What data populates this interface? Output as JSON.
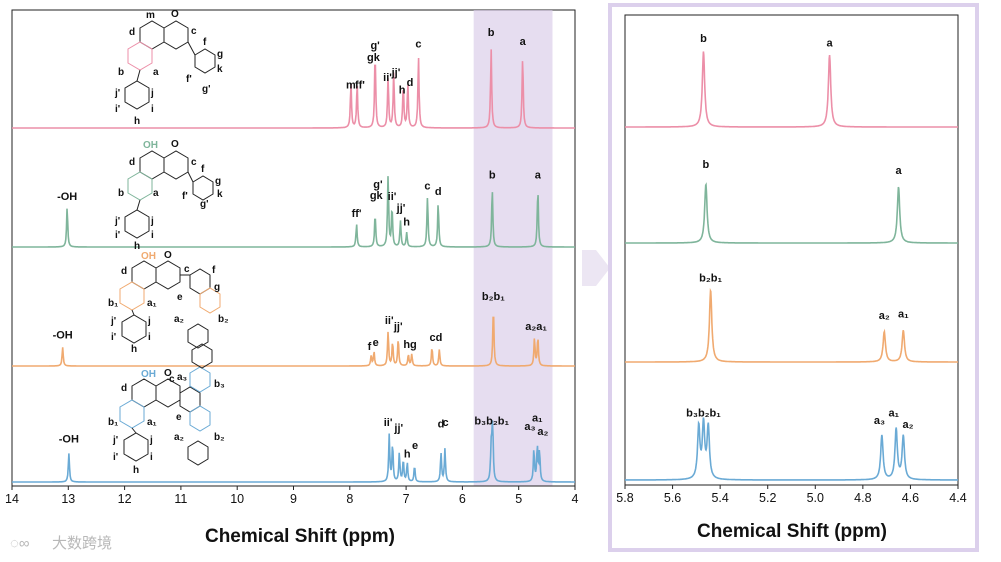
{
  "main_chart": {
    "type": "line",
    "xlabel": "Chemical Shift (ppm)",
    "xlim": [
      14,
      4
    ],
    "x_ticks": [
      "14",
      "13",
      "12",
      "11",
      "10",
      "9",
      "8",
      "7",
      "6",
      "5",
      "4"
    ],
    "highlight_range": [
      5.8,
      4.4
    ],
    "series": [
      {
        "name": "compound-1",
        "color": "#ec8fa8",
        "peaks": [
          {
            "ppm": 7.98,
            "height": 0.62
          },
          {
            "ppm": 7.87,
            "height": 0.62
          },
          {
            "ppm": 7.55,
            "height": 1.05
          },
          {
            "ppm": 7.32,
            "height": 0.7
          },
          {
            "ppm": 7.22,
            "height": 0.78
          },
          {
            "ppm": 7.05,
            "height": 0.6
          },
          {
            "ppm": 6.97,
            "height": 0.62
          },
          {
            "ppm": 6.78,
            "height": 1.0
          },
          {
            "ppm": 5.49,
            "height": 1.1
          },
          {
            "ppm": 4.93,
            "height": 1.0
          }
        ],
        "labels": [
          {
            "text": "m",
            "ppm": 7.98,
            "level": 0.55
          },
          {
            "text": "ff'",
            "ppm": 7.82,
            "level": 0.55
          },
          {
            "text": "g'",
            "ppm": 7.55,
            "level": 1.1
          },
          {
            "text": "gk",
            "ppm": 7.58,
            "level": 0.93
          },
          {
            "text": "jj'",
            "ppm": 7.18,
            "level": 0.72
          },
          {
            "text": "ii'",
            "ppm": 7.33,
            "level": 0.65
          },
          {
            "text": "d",
            "ppm": 6.93,
            "level": 0.58
          },
          {
            "text": "h",
            "ppm": 7.07,
            "level": 0.48
          },
          {
            "text": "c",
            "ppm": 6.78,
            "level": 1.12
          },
          {
            "text": "b",
            "ppm": 5.49,
            "level": 1.28
          },
          {
            "text": "a",
            "ppm": 4.93,
            "level": 1.15
          }
        ]
      },
      {
        "name": "compound-2",
        "color": "#7fb59b",
        "peaks": [
          {
            "ppm": 13.02,
            "height": 0.55
          },
          {
            "ppm": 7.88,
            "height": 0.32
          },
          {
            "ppm": 7.55,
            "height": 0.46
          },
          {
            "ppm": 7.32,
            "height": 1.0
          },
          {
            "ppm": 7.25,
            "height": 0.55
          },
          {
            "ppm": 7.1,
            "height": 0.36
          },
          {
            "ppm": 6.99,
            "height": 0.2
          },
          {
            "ppm": 6.62,
            "height": 0.7
          },
          {
            "ppm": 6.43,
            "height": 0.62
          },
          {
            "ppm": 5.47,
            "height": 0.82
          },
          {
            "ppm": 4.66,
            "height": 0.82
          }
        ],
        "labels": [
          {
            "text": "-OH",
            "ppm": 13.02,
            "level": 0.65
          },
          {
            "text": "ff'",
            "ppm": 7.88,
            "level": 0.42
          },
          {
            "text": "g'",
            "ppm": 7.5,
            "level": 0.82
          },
          {
            "text": "gk",
            "ppm": 7.53,
            "level": 0.67
          },
          {
            "text": "ii'",
            "ppm": 7.25,
            "level": 0.65
          },
          {
            "text": "jj'",
            "ppm": 7.09,
            "level": 0.49
          },
          {
            "text": "h",
            "ppm": 6.99,
            "level": 0.3
          },
          {
            "text": "c",
            "ppm": 6.62,
            "level": 0.8
          },
          {
            "text": "d",
            "ppm": 6.43,
            "level": 0.72
          },
          {
            "text": "b",
            "ppm": 5.47,
            "level": 0.95
          },
          {
            "text": "a",
            "ppm": 4.66,
            "level": 0.95
          }
        ]
      },
      {
        "name": "compound-3",
        "color": "#f0aa70",
        "peaks": [
          {
            "ppm": 13.1,
            "height": 0.26
          },
          {
            "ppm": 7.62,
            "height": 0.14
          },
          {
            "ppm": 7.57,
            "height": 0.2
          },
          {
            "ppm": 7.32,
            "height": 0.48
          },
          {
            "ppm": 7.24,
            "height": 0.33
          },
          {
            "ppm": 7.14,
            "height": 0.38
          },
          {
            "ppm": 6.96,
            "height": 0.16
          },
          {
            "ppm": 6.9,
            "height": 0.16
          },
          {
            "ppm": 6.54,
            "height": 0.26
          },
          {
            "ppm": 6.41,
            "height": 0.23
          },
          {
            "ppm": 5.45,
            "height": 0.82
          },
          {
            "ppm": 4.72,
            "height": 0.38
          },
          {
            "ppm": 4.66,
            "height": 0.4
          }
        ],
        "labels": [
          {
            "text": "-OH",
            "ppm": 13.1,
            "level": 0.38
          },
          {
            "text": "f",
            "ppm": 7.65,
            "level": 0.22
          },
          {
            "text": "e",
            "ppm": 7.54,
            "level": 0.28
          },
          {
            "text": "ii'",
            "ppm": 7.3,
            "level": 0.58
          },
          {
            "text": "jj'",
            "ppm": 7.14,
            "level": 0.5
          },
          {
            "text": "hg",
            "ppm": 6.93,
            "level": 0.25
          },
          {
            "text": "cd",
            "ppm": 6.47,
            "level": 0.35
          },
          {
            "text": "b₂b₁",
            "ppm": 5.45,
            "level": 0.92
          },
          {
            "text": "a₂a₁",
            "ppm": 4.69,
            "level": 0.5
          }
        ]
      },
      {
        "name": "compound-4",
        "color": "#6aaad5",
        "peaks": [
          {
            "ppm": 12.99,
            "height": 0.4
          },
          {
            "ppm": 7.3,
            "height": 0.65
          },
          {
            "ppm": 7.24,
            "height": 0.52
          },
          {
            "ppm": 7.12,
            "height": 0.4
          },
          {
            "ppm": 7.05,
            "height": 0.3
          },
          {
            "ppm": 6.98,
            "height": 0.26
          },
          {
            "ppm": 6.85,
            "height": 0.22
          },
          {
            "ppm": 6.38,
            "height": 0.4
          },
          {
            "ppm": 6.31,
            "height": 0.46
          },
          {
            "ppm": 5.49,
            "height": 0.44
          },
          {
            "ppm": 5.47,
            "height": 0.46
          },
          {
            "ppm": 5.46,
            "height": 0.44
          },
          {
            "ppm": 4.73,
            "height": 0.45
          },
          {
            "ppm": 4.67,
            "height": 0.48
          },
          {
            "ppm": 4.63,
            "height": 0.42
          }
        ],
        "labels": [
          {
            "text": "-OH",
            "ppm": 12.99,
            "level": 0.55
          },
          {
            "text": "ii'",
            "ppm": 7.32,
            "level": 0.78
          },
          {
            "text": "jj'",
            "ppm": 7.13,
            "level": 0.7
          },
          {
            "text": "h",
            "ppm": 6.98,
            "level": 0.34
          },
          {
            "text": "e",
            "ppm": 6.84,
            "level": 0.46
          },
          {
            "text": "d",
            "ppm": 6.38,
            "level": 0.76
          },
          {
            "text": "c",
            "ppm": 6.3,
            "level": 0.78
          },
          {
            "text": "b₃b₂b₁",
            "ppm": 5.48,
            "level": 0.8
          },
          {
            "text": "a₃",
            "ppm": 4.8,
            "level": 0.72
          },
          {
            "text": "a₁",
            "ppm": 4.67,
            "level": 0.84
          },
          {
            "text": "a₂",
            "ppm": 4.57,
            "level": 0.65
          }
        ]
      }
    ]
  },
  "zoom_chart": {
    "type": "line",
    "xlabel": "Chemical Shift (ppm)",
    "xlim": [
      5.8,
      4.4
    ],
    "x_ticks": [
      "5.8",
      "5.6",
      "5.4",
      "5.2",
      "5.0",
      "4.8",
      "4.6",
      "4.4"
    ],
    "series": [
      {
        "name": "compound-1",
        "color": "#ec8fa8",
        "peaks": [
          {
            "ppm": 5.47,
            "height": 1.05
          },
          {
            "ppm": 4.94,
            "height": 1.0
          }
        ],
        "labels": [
          {
            "text": "b",
            "ppm": 5.47,
            "level": 1.18
          },
          {
            "text": "a",
            "ppm": 4.94,
            "level": 1.12
          }
        ]
      },
      {
        "name": "compound-2",
        "color": "#7fb59b",
        "peaks": [
          {
            "ppm": 5.46,
            "height": 0.82
          },
          {
            "ppm": 4.65,
            "height": 0.78
          }
        ],
        "labels": [
          {
            "text": "b",
            "ppm": 5.46,
            "level": 1.04
          },
          {
            "text": "a",
            "ppm": 4.65,
            "level": 0.96
          }
        ]
      },
      {
        "name": "compound-3",
        "color": "#f0aa70",
        "peaks": [
          {
            "ppm": 5.44,
            "height": 1.0
          },
          {
            "ppm": 4.71,
            "height": 0.42
          },
          {
            "ppm": 4.63,
            "height": 0.44
          }
        ],
        "labels": [
          {
            "text": "b₂b₁",
            "ppm": 5.44,
            "level": 1.12
          },
          {
            "text": "a₂",
            "ppm": 4.71,
            "level": 0.6
          },
          {
            "text": "a₁",
            "ppm": 4.63,
            "level": 0.62
          }
        ]
      },
      {
        "name": "compound-4",
        "color": "#6aaad5",
        "peaks": [
          {
            "ppm": 5.49,
            "height": 0.72
          },
          {
            "ppm": 5.47,
            "height": 0.75
          },
          {
            "ppm": 5.45,
            "height": 0.72
          },
          {
            "ppm": 4.72,
            "height": 0.62
          },
          {
            "ppm": 4.66,
            "height": 0.7
          },
          {
            "ppm": 4.63,
            "height": 0.6
          }
        ],
        "labels": [
          {
            "text": "b₃b₂b₁",
            "ppm": 5.47,
            "level": 0.88
          },
          {
            "text": "a₃",
            "ppm": 4.73,
            "level": 0.78
          },
          {
            "text": "a₁",
            "ppm": 4.67,
            "level": 0.88
          },
          {
            "text": "a₂",
            "ppm": 4.61,
            "level": 0.72
          }
        ]
      }
    ]
  },
  "structure_labels": {
    "s1": [
      "d",
      "m",
      "O",
      "c",
      "f",
      "g",
      "b",
      "a",
      "k",
      "f'",
      "g'",
      "j'",
      "j",
      "i'",
      "i",
      "h"
    ],
    "s2": [
      "d",
      "OH",
      "O",
      "c",
      "f",
      "g",
      "b",
      "a",
      "k",
      "f'",
      "g'",
      "j'",
      "j",
      "i'",
      "i",
      "h"
    ],
    "s3": [
      "OH",
      "O",
      "d",
      "c",
      "f",
      "g",
      "b₁",
      "a₁",
      "e",
      "a₂",
      "b₂",
      "j'",
      "j",
      "i'",
      "i",
      "h"
    ],
    "s4": [
      "OH",
      "O",
      "d",
      "c",
      "a₃",
      "b₃",
      "b₁",
      "a₁",
      "e",
      "a₂",
      "b₂",
      "j'",
      "j",
      "i'",
      "i",
      "h"
    ]
  },
  "watermark": "大数跨境"
}
